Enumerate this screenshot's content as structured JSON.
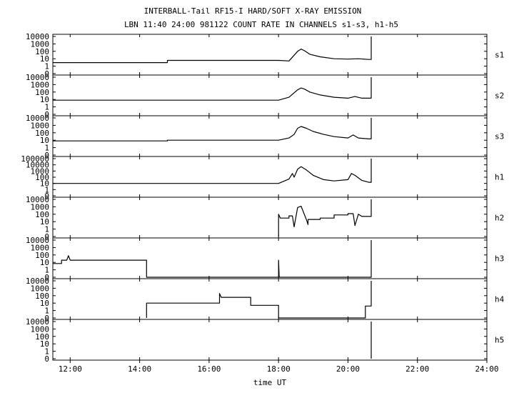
{
  "chart_data": {
    "type": "line",
    "title": "INTERBALL-Tail RF15-I HARD/SOFT X-RAY EMISSION",
    "subtitle": "LBN 11:40 24:00 981122  COUNT RATE IN CHANNELS s1-s3, h1-h5",
    "xlabel": "time UT",
    "x_ticks": [
      "12:00",
      "14:00",
      "16:00",
      "18:00",
      "20:00",
      "22:00",
      "24:00"
    ],
    "x_tick_hours": [
      12,
      14,
      16,
      18,
      20,
      22,
      24
    ],
    "xlim_hours": [
      11.5,
      24
    ],
    "y_scale": "log",
    "series": [
      {
        "name": "s1",
        "y_ticks": [
          "10000",
          "1000",
          "100",
          "10",
          "1",
          "0"
        ],
        "points": [
          [
            11.5,
            3
          ],
          [
            14.8,
            3
          ],
          [
            14.8,
            6
          ],
          [
            18.0,
            6
          ],
          [
            18.3,
            5
          ],
          [
            18.55,
            100
          ],
          [
            18.65,
            200
          ],
          [
            18.75,
            120
          ],
          [
            18.9,
            40
          ],
          [
            19.2,
            18
          ],
          [
            19.6,
            10
          ],
          [
            20.0,
            9
          ],
          [
            20.3,
            10
          ],
          [
            20.6,
            8
          ],
          [
            20.67,
            8
          ],
          [
            20.67,
            10000
          ]
        ]
      },
      {
        "name": "s2",
        "y_ticks": [
          "10000",
          "1000",
          "100",
          "10",
          "1",
          "0"
        ],
        "points": [
          [
            11.5,
            8
          ],
          [
            18.0,
            8
          ],
          [
            18.3,
            20
          ],
          [
            18.55,
            200
          ],
          [
            18.65,
            350
          ],
          [
            18.75,
            250
          ],
          [
            18.9,
            100
          ],
          [
            19.2,
            40
          ],
          [
            19.6,
            20
          ],
          [
            20.0,
            15
          ],
          [
            20.2,
            25
          ],
          [
            20.4,
            15
          ],
          [
            20.6,
            15
          ],
          [
            20.67,
            15
          ],
          [
            20.67,
            10000
          ]
        ]
      },
      {
        "name": "s3",
        "y_ticks": [
          "10000",
          "1000",
          "100",
          "10",
          "1",
          "0"
        ],
        "points": [
          [
            11.5,
            8
          ],
          [
            14.8,
            8
          ],
          [
            14.8,
            10
          ],
          [
            18.0,
            10
          ],
          [
            18.3,
            20
          ],
          [
            18.45,
            60
          ],
          [
            18.55,
            400
          ],
          [
            18.65,
            700
          ],
          [
            18.8,
            400
          ],
          [
            19.0,
            150
          ],
          [
            19.3,
            60
          ],
          [
            19.6,
            30
          ],
          [
            20.0,
            20
          ],
          [
            20.15,
            50
          ],
          [
            20.3,
            20
          ],
          [
            20.6,
            15
          ],
          [
            20.67,
            15
          ],
          [
            20.67,
            10000
          ]
        ]
      },
      {
        "name": "h1",
        "y_ticks": [
          "100000",
          "10000",
          "1000",
          "100",
          "10",
          "1",
          "0"
        ],
        "points": [
          [
            11.5,
            10
          ],
          [
            18.0,
            10
          ],
          [
            18.3,
            50
          ],
          [
            18.4,
            400
          ],
          [
            18.45,
            100
          ],
          [
            18.55,
            2000
          ],
          [
            18.65,
            5000
          ],
          [
            18.8,
            1500
          ],
          [
            19.0,
            200
          ],
          [
            19.3,
            40
          ],
          [
            19.6,
            25
          ],
          [
            20.0,
            40
          ],
          [
            20.1,
            400
          ],
          [
            20.2,
            200
          ],
          [
            20.4,
            30
          ],
          [
            20.6,
            15
          ],
          [
            20.67,
            15
          ],
          [
            20.67,
            100000
          ]
        ]
      },
      {
        "name": "h2",
        "y_ticks": [
          "10000",
          "1000",
          "100",
          "10",
          "1",
          "0"
        ],
        "points": [
          [
            18.0,
            0
          ],
          [
            18.0,
            100
          ],
          [
            18.05,
            30
          ],
          [
            18.3,
            30
          ],
          [
            18.3,
            60
          ],
          [
            18.4,
            60
          ],
          [
            18.45,
            2
          ],
          [
            18.55,
            800
          ],
          [
            18.65,
            1200
          ],
          [
            18.8,
            20
          ],
          [
            18.85,
            4
          ],
          [
            18.85,
            20
          ],
          [
            19.2,
            20
          ],
          [
            19.2,
            30
          ],
          [
            19.6,
            30
          ],
          [
            19.6,
            80
          ],
          [
            20.0,
            80
          ],
          [
            20.0,
            120
          ],
          [
            20.15,
            120
          ],
          [
            20.2,
            3
          ],
          [
            20.3,
            100
          ],
          [
            20.4,
            50
          ],
          [
            20.6,
            50
          ],
          [
            20.67,
            50
          ],
          [
            20.67,
            10000
          ]
        ]
      },
      {
        "name": "h3",
        "y_ticks": [
          "10000",
          "1000",
          "100",
          "10",
          "1",
          "0"
        ],
        "points": [
          [
            11.5,
            7
          ],
          [
            11.75,
            7
          ],
          [
            11.75,
            20
          ],
          [
            11.9,
            20
          ],
          [
            11.95,
            80
          ],
          [
            12.0,
            20
          ],
          [
            14.2,
            20
          ],
          [
            14.2,
            0
          ],
          [
            18.0,
            0
          ],
          [
            18.0,
            20
          ],
          [
            18.02,
            0
          ],
          [
            20.67,
            0
          ],
          [
            20.67,
            10000
          ]
        ]
      },
      {
        "name": "h4",
        "y_ticks": [
          "10000",
          "1000",
          "100",
          "10",
          "1",
          "0"
        ],
        "points": [
          [
            14.2,
            0
          ],
          [
            14.2,
            10
          ],
          [
            16.3,
            10
          ],
          [
            16.3,
            200
          ],
          [
            16.35,
            60
          ],
          [
            17.2,
            60
          ],
          [
            17.2,
            5
          ],
          [
            18.0,
            5
          ],
          [
            18.0,
            0
          ],
          [
            20.5,
            0
          ],
          [
            20.5,
            4
          ],
          [
            20.67,
            4
          ],
          [
            20.67,
            10000
          ]
        ]
      },
      {
        "name": "h5",
        "y_ticks": [
          "10000",
          "1000",
          "100",
          "10",
          "1",
          "0"
        ],
        "points": [
          [
            20.67,
            0
          ],
          [
            20.67,
            10000
          ]
        ]
      }
    ]
  }
}
